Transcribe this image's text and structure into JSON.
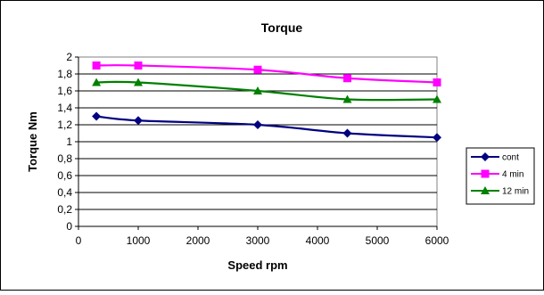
{
  "chart_data": {
    "type": "line",
    "title": "Torque",
    "xlabel": "Speed rpm",
    "ylabel": "Torque Nm",
    "x": [
      300,
      1000,
      3000,
      4500,
      6000
    ],
    "xlim": [
      0,
      6000
    ],
    "ylim": [
      0,
      2
    ],
    "x_ticks": [
      0,
      1000,
      2000,
      3000,
      4000,
      5000,
      6000
    ],
    "y_ticks": [
      0,
      0.2,
      0.4,
      0.6,
      0.8,
      1,
      1.2,
      1.4,
      1.6,
      1.8,
      2
    ],
    "x_tick_labels": [
      "0",
      "1000",
      "2000",
      "3000",
      "4000",
      "5000",
      "6000"
    ],
    "y_tick_labels": [
      "0",
      "0,2",
      "0,4",
      "0,6",
      "0,8",
      "1",
      "1,2",
      "1,4",
      "1,6",
      "1,8",
      "2"
    ],
    "grid": "horizontal",
    "legend_position": "right",
    "series": [
      {
        "name": "cont",
        "values": [
          1.3,
          1.25,
          1.2,
          1.1,
          1.05
        ],
        "color": "#000080",
        "marker": "diamond"
      },
      {
        "name": "4 min",
        "values": [
          1.9,
          1.9,
          1.85,
          1.75,
          1.7
        ],
        "color": "#ff00ff",
        "marker": "square"
      },
      {
        "name": "12 min",
        "values": [
          1.7,
          1.7,
          1.6,
          1.5,
          1.5
        ],
        "color": "#008000",
        "marker": "triangle"
      }
    ]
  }
}
